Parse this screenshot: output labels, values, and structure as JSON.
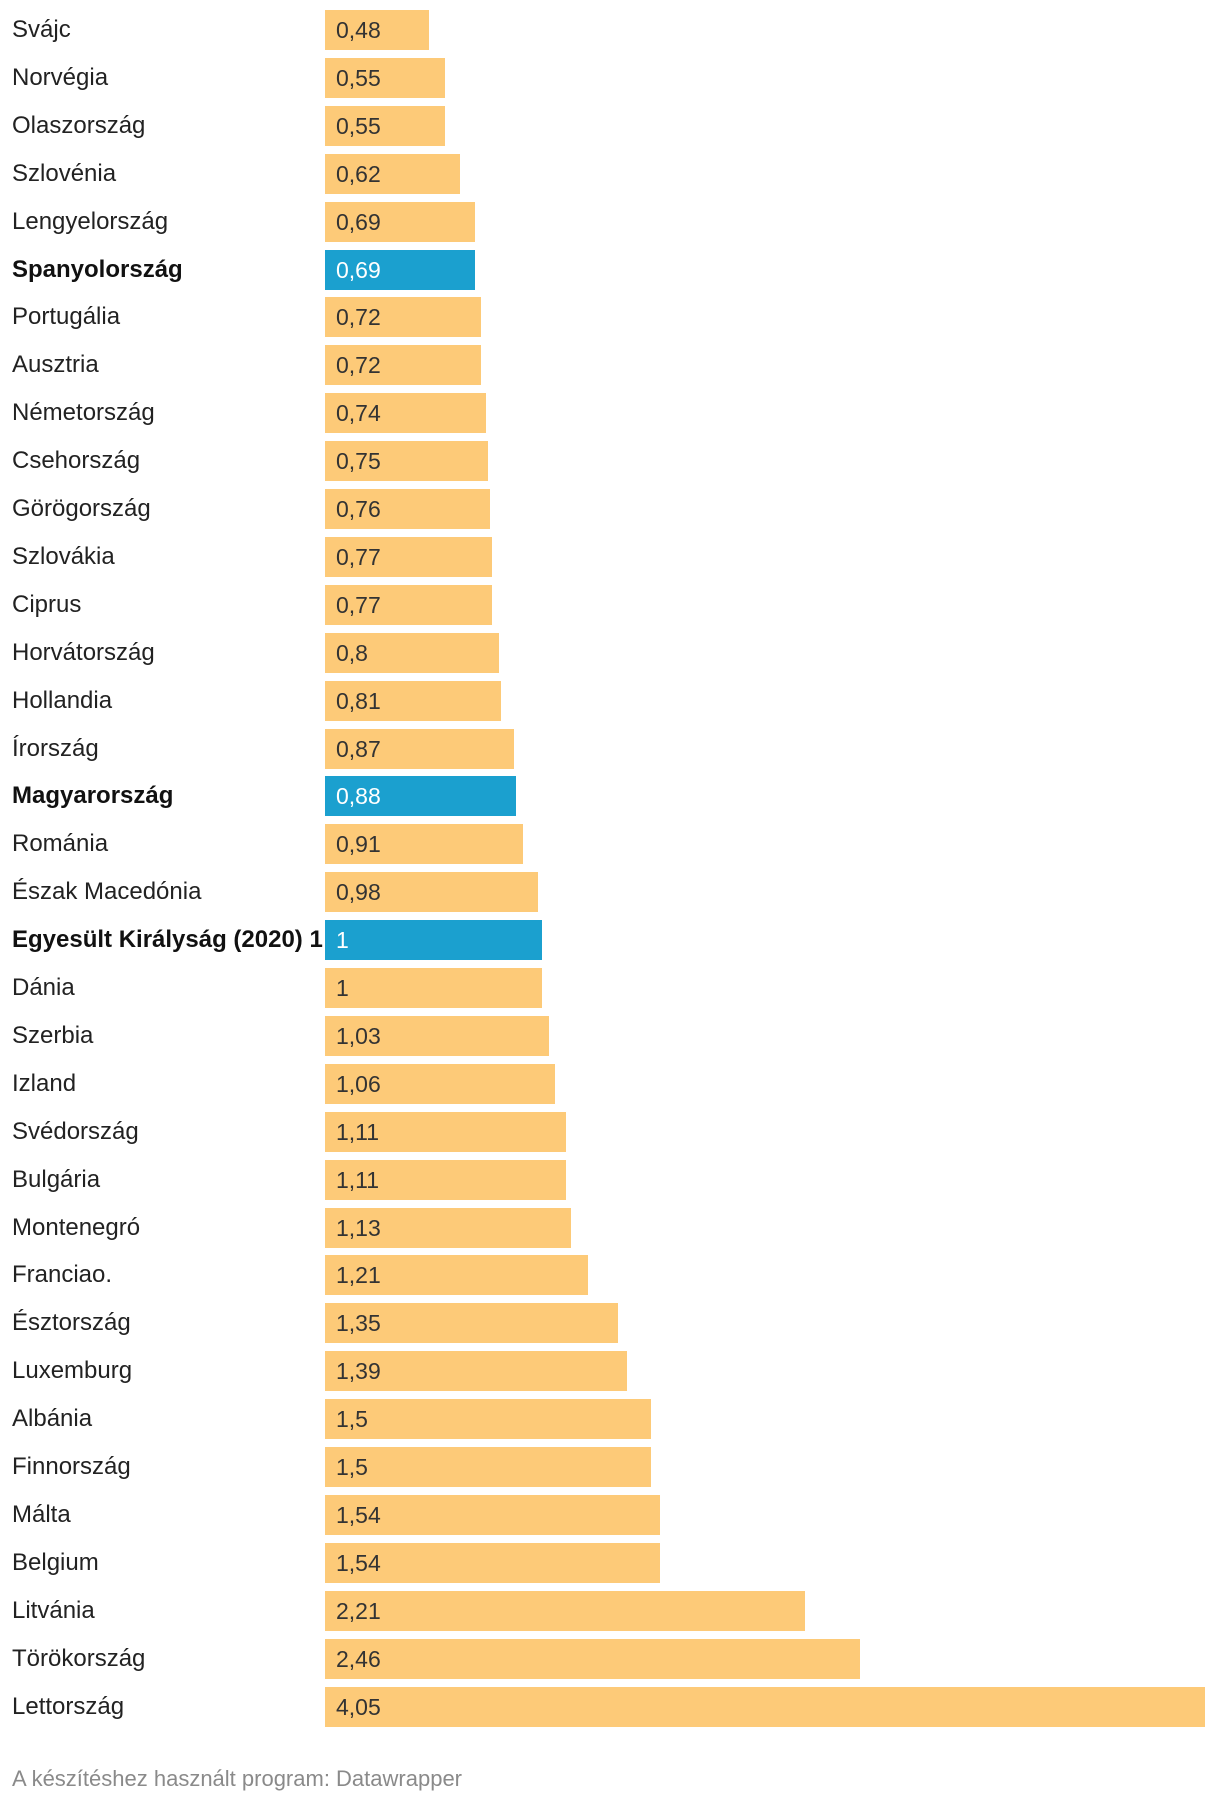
{
  "chart_data": {
    "type": "bar",
    "orientation": "horizontal",
    "colors": {
      "default": "#fdca78",
      "highlight": "#1ba0cf",
      "value_text_default": "#333333",
      "value_text_highlight": "#ffffff"
    },
    "categories": [
      "Svájc",
      "Norvégia",
      "Olaszország",
      "Szlovénia",
      "Lengyelország",
      "Spanyolország",
      "Portugália",
      "Ausztria",
      "Németország",
      "Csehország",
      "Görögország",
      "Szlovákia",
      "Ciprus",
      "Horvátország",
      "Hollandia",
      "Írország",
      "Magyarország",
      "Románia",
      "Észak Macedónia",
      "Egyesült Királyság (2020) 1",
      "Dánia",
      "Szerbia",
      "Izland",
      "Svédország",
      "Bulgária",
      "Montenegró",
      "Franciao.",
      "Észtország",
      "Luxemburg",
      "Albánia",
      "Finnország",
      "Málta",
      "Belgium",
      "Litvánia",
      "Törökország",
      "Lettország"
    ],
    "values": [
      0.48,
      0.55,
      0.55,
      0.62,
      0.69,
      0.69,
      0.72,
      0.72,
      0.74,
      0.75,
      0.76,
      0.77,
      0.77,
      0.8,
      0.81,
      0.87,
      0.88,
      0.91,
      0.98,
      1,
      1,
      1.03,
      1.06,
      1.11,
      1.11,
      1.13,
      1.21,
      1.35,
      1.39,
      1.5,
      1.5,
      1.54,
      1.54,
      2.21,
      2.46,
      4.05
    ],
    "value_labels": [
      "0,48",
      "0,55",
      "0,55",
      "0,62",
      "0,69",
      "0,69",
      "0,72",
      "0,72",
      "0,74",
      "0,75",
      "0,76",
      "0,77",
      "0,77",
      "0,8",
      "0,81",
      "0,87",
      "0,88",
      "0,91",
      "0,98",
      "1",
      "1",
      "1,03",
      "1,06",
      "1,11",
      "1,11",
      "1,13",
      "1,21",
      "1,35",
      "1,39",
      "1,5",
      "1,5",
      "1,54",
      "1,54",
      "2,21",
      "2,46",
      "4,05"
    ],
    "highlighted": [
      "Spanyolország",
      "Magyarország",
      "Egyesült Királyság (2020) 1"
    ],
    "xlim": [
      0,
      4.05
    ],
    "title": "",
    "xlabel": "",
    "ylabel": ""
  },
  "footer": {
    "text": "A készítéshez használt program: Datawrapper"
  }
}
